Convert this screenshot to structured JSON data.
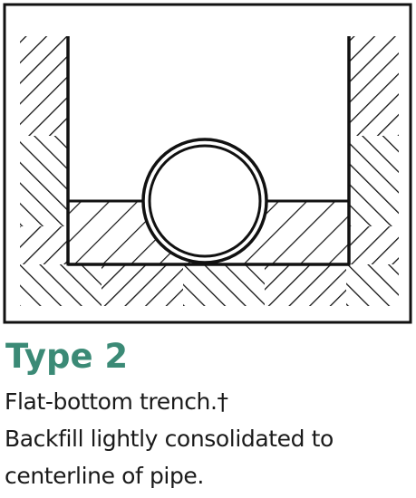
{
  "caption": {
    "title": "Type 2",
    "lines": [
      "Flat-bottom trench.†",
      "Backfill lightly consolidated to",
      "centerline of pipe."
    ]
  },
  "diagram": {
    "parts": [
      "frame",
      "native-soil-left",
      "native-soil-right",
      "native-soil-bottom",
      "backfill",
      "pipe"
    ],
    "colors": {
      "line": "#111111",
      "background": "#ffffff",
      "title": "#3b8a76"
    }
  }
}
